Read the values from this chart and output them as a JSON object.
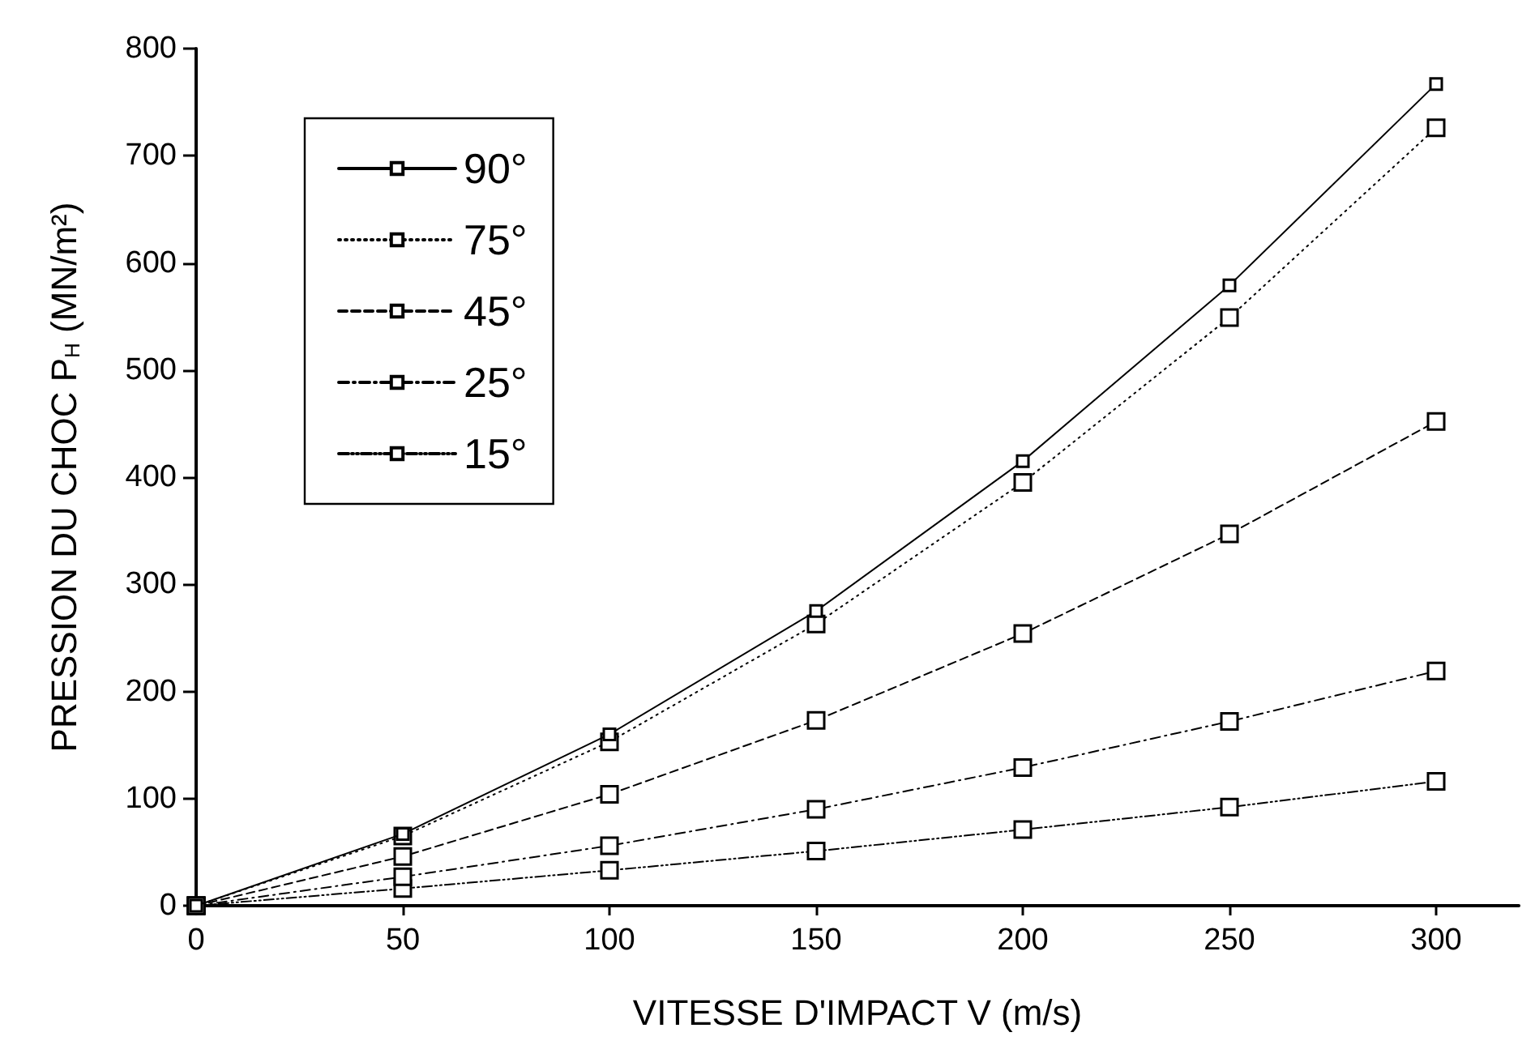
{
  "chart_data": {
    "type": "line",
    "xlabel": "VITESSE D'IMPACT V (m/s)",
    "ylabel": "PRESSION DU CHOC P$_{H}$ (MN/m²)",
    "x": [
      0,
      50,
      100,
      150,
      200,
      250,
      300
    ],
    "xlim": [
      0,
      320
    ],
    "xticks": [
      0,
      50,
      100,
      150,
      200,
      250,
      300
    ],
    "ylim": [
      0,
      800
    ],
    "yticks": [
      0,
      100,
      200,
      300,
      400,
      500,
      600,
      700,
      800
    ],
    "grid": false,
    "legend": "top left",
    "marker": "square",
    "series": [
      {
        "name": "90°",
        "color": "#000000",
        "line_style": "solid",
        "values": [
          0,
          67,
          160,
          275,
          415,
          579,
          767
        ]
      },
      {
        "name": "75°",
        "color": "#000000",
        "line_style": "dotted",
        "values": [
          0,
          65,
          153,
          263,
          395,
          549,
          726
        ]
      },
      {
        "name": "45°",
        "color": "#000000",
        "line_style": "dashed",
        "values": [
          0,
          46,
          104,
          173,
          254,
          347,
          452
        ]
      },
      {
        "name": "25°",
        "color": "#000000",
        "line_style": "dashdot",
        "values": [
          0,
          27,
          56,
          90,
          129,
          172,
          219
        ]
      },
      {
        "name": "15°",
        "color": "#000000",
        "line_style": "dashdotdot",
        "values": [
          0,
          16,
          33,
          51,
          71,
          92,
          116
        ]
      }
    ]
  }
}
